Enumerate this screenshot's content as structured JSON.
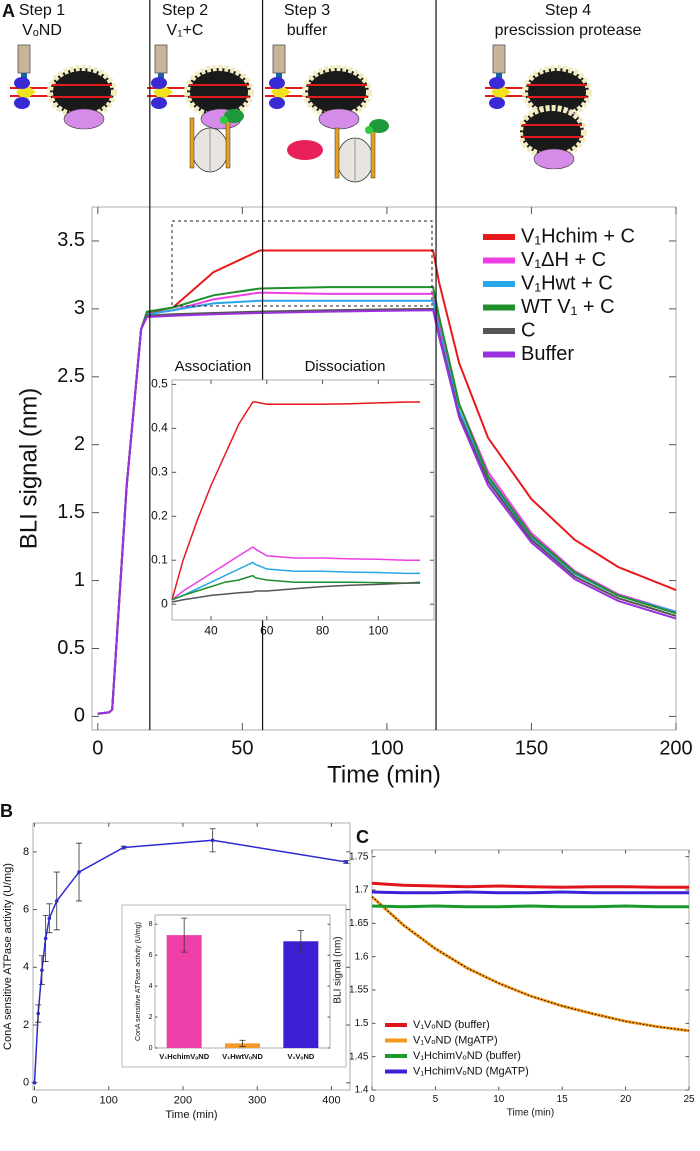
{
  "chart_data": [
    {
      "type": "line",
      "label": "A",
      "xlabel": "Time (min)",
      "ylabel": "BLI signal (nm)",
      "steps": [
        {
          "title": "Step 1",
          "subtitle": "VₒND"
        },
        {
          "title": "Step 2",
          "subtitle": "V₁+C"
        },
        {
          "title": "Step 3",
          "subtitle": "buffer"
        },
        {
          "title": "Step 4",
          "subtitle": "prescission protease"
        }
      ],
      "step_boundaries": [
        18,
        57,
        117
      ],
      "x": [
        0,
        4,
        5,
        10,
        15,
        17,
        26,
        40,
        56,
        80,
        116,
        118,
        125,
        135,
        150,
        165,
        180,
        200
      ],
      "series": [
        {
          "name": "V₁Hchim + C",
          "color": "#e8191c",
          "values": [
            0.02,
            0.03,
            0.05,
            1.7,
            2.85,
            2.97,
            3.01,
            3.27,
            3.43,
            3.43,
            3.43,
            3.2,
            2.6,
            2.05,
            1.6,
            1.3,
            1.1,
            0.93
          ]
        },
        {
          "name": "V₁ΔH + C",
          "color": "#ee3fe6",
          "values": [
            0.02,
            0.03,
            0.05,
            1.7,
            2.85,
            2.96,
            2.99,
            3.07,
            3.12,
            3.11,
            3.11,
            2.9,
            2.3,
            1.8,
            1.35,
            1.07,
            0.9,
            0.77
          ]
        },
        {
          "name": "V₁Hwt + C",
          "color": "#28a6e8",
          "values": [
            0.02,
            0.03,
            0.05,
            1.7,
            2.85,
            2.96,
            2.99,
            3.04,
            3.06,
            3.06,
            3.06,
            2.85,
            2.25,
            1.75,
            1.32,
            1.05,
            0.89,
            0.77
          ]
        },
        {
          "name": "WT V₁ + C",
          "color": "#1e8f2a",
          "values": [
            0.02,
            0.03,
            0.05,
            1.7,
            2.85,
            2.98,
            3.01,
            3.1,
            3.15,
            3.16,
            3.16,
            2.95,
            2.3,
            1.77,
            1.33,
            1.06,
            0.89,
            0.76
          ]
        },
        {
          "name": "C",
          "color": "#555555",
          "values": [
            0.02,
            0.03,
            0.05,
            1.7,
            2.85,
            2.95,
            2.96,
            2.97,
            2.98,
            2.99,
            3.0,
            2.82,
            2.22,
            1.73,
            1.3,
            1.03,
            0.87,
            0.74
          ]
        },
        {
          "name": "Buffer",
          "color": "#9b30e0",
          "values": [
            0.02,
            0.03,
            0.05,
            1.7,
            2.85,
            2.94,
            2.95,
            2.96,
            2.97,
            2.98,
            2.99,
            2.8,
            2.2,
            1.7,
            1.28,
            1.01,
            0.85,
            0.72
          ]
        }
      ],
      "xlim": [
        -2,
        200
      ],
      "ylim": [
        -0.1,
        3.75
      ],
      "xticks": [
        0,
        50,
        100,
        150,
        200
      ],
      "yticks": [
        0,
        0.5,
        1,
        1.5,
        2,
        2.5,
        3,
        3.5
      ],
      "legend": "upper right"
    },
    {
      "type": "line",
      "annotations": [
        "Association",
        "Dissociation"
      ],
      "x": [
        26,
        30,
        35,
        40,
        45,
        50,
        55,
        56,
        60,
        70,
        80,
        90,
        100,
        110,
        115
      ],
      "series": [
        {
          "color": "#e8191c",
          "values": [
            0.01,
            0.1,
            0.19,
            0.27,
            0.34,
            0.41,
            0.46,
            0.46,
            0.455,
            0.455,
            0.455,
            0.456,
            0.458,
            0.46,
            0.46
          ]
        },
        {
          "color": "#ee3fe6",
          "values": [
            0.01,
            0.03,
            0.05,
            0.07,
            0.09,
            0.11,
            0.13,
            0.125,
            0.11,
            0.105,
            0.105,
            0.103,
            0.102,
            0.1,
            0.1
          ]
        },
        {
          "color": "#28a6e8",
          "values": [
            0.01,
            0.02,
            0.035,
            0.05,
            0.065,
            0.08,
            0.095,
            0.09,
            0.08,
            0.075,
            0.075,
            0.073,
            0.072,
            0.07,
            0.07
          ]
        },
        {
          "color": "#1e8f2a",
          "values": [
            0.01,
            0.02,
            0.03,
            0.04,
            0.05,
            0.055,
            0.065,
            0.06,
            0.055,
            0.05,
            0.05,
            0.05,
            0.049,
            0.048,
            0.048
          ]
        },
        {
          "color": "#555555",
          "values": [
            0.005,
            0.01,
            0.015,
            0.02,
            0.023,
            0.026,
            0.028,
            0.03,
            0.03,
            0.035,
            0.04,
            0.043,
            0.045,
            0.048,
            0.05
          ]
        }
      ],
      "xlim": [
        26,
        120
      ],
      "ylim": [
        -0.036,
        0.51
      ],
      "xticks": [
        40,
        60,
        80,
        100
      ],
      "yticks": [
        0,
        0.1,
        0.2,
        0.3,
        0.4,
        0.5
      ]
    },
    {
      "type": "line",
      "label": "B",
      "xlabel": "Time (min)",
      "ylabel": "ConA sensitive ATPase activity (U/mg)",
      "x": [
        0,
        5,
        10,
        15,
        20,
        30,
        60,
        120,
        240,
        420
      ],
      "series": [
        {
          "color": "#2b2bd0",
          "values": [
            0,
            2.4,
            3.9,
            5.0,
            5.7,
            6.3,
            7.3,
            8.15,
            8.4,
            7.65
          ],
          "errors": [
            0,
            0.3,
            0.5,
            0.8,
            0.5,
            1,
            1,
            0.05,
            0.4,
            0.05
          ]
        }
      ],
      "xlim": [
        -2,
        425
      ],
      "ylim": [
        -0.25,
        9
      ],
      "xticks": [
        0,
        100,
        200,
        300,
        400
      ],
      "yticks": [
        0,
        2,
        4,
        6,
        8
      ]
    },
    {
      "type": "bar",
      "ylabel": "ConA sensitive ATPase activity (U/mg)",
      "categories": [
        "V₁HchimVₒND",
        "V₁HwtVₒND",
        "V₁VₒND"
      ],
      "values": [
        7.3,
        0.3,
        6.9
      ],
      "errors": [
        1.1,
        0.2,
        0.7
      ],
      "colors": [
        "#ee3fa8",
        "#f39a2b",
        "#3a1fd4"
      ],
      "ylim": [
        0,
        8.6
      ],
      "yticks": [
        0,
        2,
        4,
        6,
        8
      ]
    },
    {
      "type": "line",
      "label": "C",
      "xlabel": "Time (min)",
      "ylabel": "BLI signal (nm)",
      "x": [
        0,
        2.5,
        5,
        7.5,
        10,
        12.5,
        15,
        17.5,
        20,
        22.5,
        25
      ],
      "series": [
        {
          "name": "V₁VₒND (buffer)",
          "color": "#e0151b",
          "values": [
            1.71,
            1.707,
            1.706,
            1.705,
            1.706,
            1.705,
            1.704,
            1.705,
            1.705,
            1.704,
            1.704
          ]
        },
        {
          "name": "V₁VₒND (MgATP)",
          "color": "#f59a1f",
          "values": [
            1.69,
            1.647,
            1.612,
            1.583,
            1.56,
            1.541,
            1.526,
            1.514,
            1.503,
            1.495,
            1.489
          ]
        },
        {
          "name": "V₁HchimVₒND (buffer)",
          "color": "#1a9a2a",
          "values": [
            1.676,
            1.675,
            1.676,
            1.675,
            1.675,
            1.676,
            1.675,
            1.675,
            1.676,
            1.675,
            1.675
          ]
        },
        {
          "name": "V₁HchimVₒND (MgATP)",
          "color": "#3a22d8",
          "values": [
            1.697,
            1.696,
            1.696,
            1.697,
            1.696,
            1.696,
            1.697,
            1.696,
            1.696,
            1.696,
            1.696
          ]
        }
      ],
      "xlim": [
        0,
        25
      ],
      "ylim": [
        1.4,
        1.76
      ],
      "xticks": [
        0,
        5,
        10,
        15,
        20,
        25
      ],
      "yticks": [
        1.4,
        1.45,
        1.5,
        1.55,
        1.6,
        1.65,
        1.7,
        1.75
      ],
      "legend": "lower left"
    }
  ]
}
